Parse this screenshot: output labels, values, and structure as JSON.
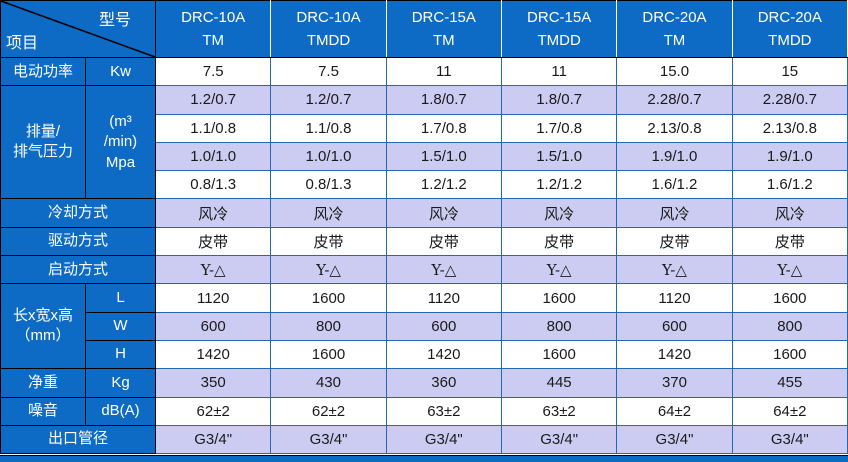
{
  "colors": {
    "header_blue": "#0d6bc5",
    "lavender": "#ccccf2",
    "border_blue": "#2268b5",
    "text_dark": "#1a1a1a"
  },
  "table": {
    "corner": {
      "top_right_label": "型号",
      "bottom_left_label": "项目"
    },
    "columns": [
      {
        "model": "DRC-10A",
        "variant": "TM"
      },
      {
        "model": "DRC-10A",
        "variant": "TMDD"
      },
      {
        "model": "DRC-15A",
        "variant": "TM"
      },
      {
        "model": "DRC-15A",
        "variant": "TMDD"
      },
      {
        "model": "DRC-20A",
        "variant": "TM"
      },
      {
        "model": "DRC-20A",
        "variant": "TMDD"
      }
    ],
    "rows": [
      {
        "shade": "white",
        "cells": [
          {
            "text": "电动功率",
            "head": true
          },
          {
            "text": "Kw",
            "head": true
          },
          {
            "text": "7.5"
          },
          {
            "text": "7.5"
          },
          {
            "text": "11"
          },
          {
            "text": "11"
          },
          {
            "text": "15.0"
          },
          {
            "text": "15"
          }
        ]
      },
      {
        "shade": "lavender",
        "cells": [
          {
            "text": "排量/\n排气压力",
            "head": true,
            "rowspan": 4
          },
          {
            "text": "(m³\n/min)\nMpa",
            "head": true,
            "rowspan": 4
          },
          {
            "text": "1.2/0.7"
          },
          {
            "text": "1.2/0.7"
          },
          {
            "text": "1.8/0.7"
          },
          {
            "text": "1.8/0.7"
          },
          {
            "text": "2.28/0.7"
          },
          {
            "text": "2.28/0.7"
          }
        ]
      },
      {
        "shade": "white",
        "cells": [
          {
            "text": "1.1/0.8"
          },
          {
            "text": "1.1/0.8"
          },
          {
            "text": "1.7/0.8"
          },
          {
            "text": "1.7/0.8"
          },
          {
            "text": "2.13/0.8"
          },
          {
            "text": "2.13/0.8"
          }
        ]
      },
      {
        "shade": "lavender",
        "cells": [
          {
            "text": "1.0/1.0"
          },
          {
            "text": "1.0/1.0"
          },
          {
            "text": "1.5/1.0"
          },
          {
            "text": "1.5/1.0"
          },
          {
            "text": "1.9/1.0"
          },
          {
            "text": "1.9/1.0"
          }
        ]
      },
      {
        "shade": "white",
        "cells": [
          {
            "text": "0.8/1.3"
          },
          {
            "text": "0.8/1.3"
          },
          {
            "text": "1.2/1.2"
          },
          {
            "text": "1.2/1.2"
          },
          {
            "text": "1.6/1.2"
          },
          {
            "text": "1.6/1.2"
          }
        ]
      },
      {
        "shade": "lavender",
        "cells": [
          {
            "text": "冷却方式",
            "head": true,
            "colspan": 2
          },
          {
            "text": "风冷",
            "serif": true
          },
          {
            "text": "风冷",
            "serif": true
          },
          {
            "text": "风冷",
            "serif": true
          },
          {
            "text": "风冷",
            "serif": true
          },
          {
            "text": "风冷",
            "serif": true
          },
          {
            "text": "风冷",
            "serif": true
          }
        ]
      },
      {
        "shade": "white",
        "cells": [
          {
            "text": "驱动方式",
            "head": true,
            "colspan": 2
          },
          {
            "text": "皮带",
            "serif": true
          },
          {
            "text": "皮带",
            "serif": true
          },
          {
            "text": "皮带",
            "serif": true
          },
          {
            "text": "皮带",
            "serif": true
          },
          {
            "text": "皮带",
            "serif": true
          },
          {
            "text": "皮带",
            "serif": true
          }
        ]
      },
      {
        "shade": "lavender",
        "cells": [
          {
            "text": "启动方式",
            "head": true,
            "colspan": 2
          },
          {
            "text": "Y-△",
            "serif": true
          },
          {
            "text": "Y-△",
            "serif": true
          },
          {
            "text": "Y-△",
            "serif": true
          },
          {
            "text": "Y-△",
            "serif": true
          },
          {
            "text": "Y-△",
            "serif": true
          },
          {
            "text": "Y-△",
            "serif": true
          }
        ]
      },
      {
        "shade": "white",
        "cells": [
          {
            "text": "长x宽x高\n（mm）",
            "head": true,
            "rowspan": 3
          },
          {
            "text": "L",
            "head": true
          },
          {
            "text": "1120"
          },
          {
            "text": "1600"
          },
          {
            "text": "1120"
          },
          {
            "text": "1600"
          },
          {
            "text": "1120"
          },
          {
            "text": "1600"
          }
        ]
      },
      {
        "shade": "lavender",
        "cells": [
          {
            "text": "W",
            "head": true
          },
          {
            "text": "600"
          },
          {
            "text": "800"
          },
          {
            "text": "600"
          },
          {
            "text": "800"
          },
          {
            "text": "600"
          },
          {
            "text": "800"
          }
        ]
      },
      {
        "shade": "white",
        "cells": [
          {
            "text": "H",
            "head": true
          },
          {
            "text": "1420"
          },
          {
            "text": "1600"
          },
          {
            "text": "1420"
          },
          {
            "text": "1600"
          },
          {
            "text": "1420"
          },
          {
            "text": "1600"
          }
        ]
      },
      {
        "shade": "lavender",
        "cells": [
          {
            "text": "净重",
            "head": true
          },
          {
            "text": "Kg",
            "head": true
          },
          {
            "text": "350"
          },
          {
            "text": "430"
          },
          {
            "text": "360"
          },
          {
            "text": "445"
          },
          {
            "text": "370"
          },
          {
            "text": "455"
          }
        ]
      },
      {
        "shade": "white",
        "cells": [
          {
            "text": "噪音",
            "head": true
          },
          {
            "text": "dB(A)",
            "head": true
          },
          {
            "text": "62±2"
          },
          {
            "text": "62±2"
          },
          {
            "text": "63±2"
          },
          {
            "text": "63±2"
          },
          {
            "text": "64±2"
          },
          {
            "text": "64±2"
          }
        ]
      },
      {
        "shade": "lavender",
        "cells": [
          {
            "text": "出口管径",
            "head": true,
            "colspan": 2
          },
          {
            "text": "G3/4\""
          },
          {
            "text": "G3/4\""
          },
          {
            "text": "G3/4\""
          },
          {
            "text": "G3/4\""
          },
          {
            "text": "G3/4\""
          },
          {
            "text": "G3/4\""
          }
        ]
      }
    ]
  }
}
